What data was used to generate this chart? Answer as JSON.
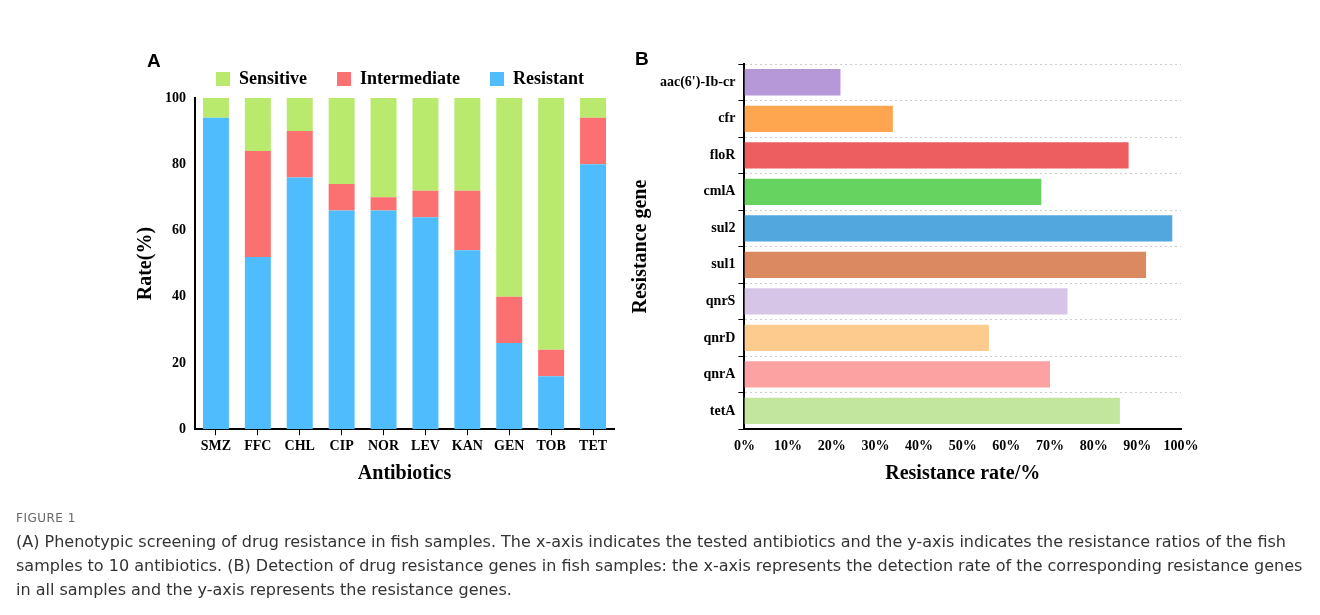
{
  "chart_data": [
    {
      "type": "bar",
      "stacked": true,
      "xlabel": "Antibiotics",
      "ylabel": "Rate(%)",
      "categories": [
        "SMZ",
        "FFC",
        "CHL",
        "CIP",
        "NOR",
        "LEV",
        "KAN",
        "GEN",
        "TOB",
        "TET"
      ],
      "series": [
        {
          "name": "Resistant",
          "color": "#4fbdfd",
          "values": [
            94,
            52,
            76,
            66,
            66,
            64,
            54,
            26,
            16,
            80
          ]
        },
        {
          "name": "Intermediate",
          "color": "#fb7070",
          "values": [
            0,
            32,
            14,
            8,
            4,
            8,
            18,
            14,
            8,
            14
          ]
        },
        {
          "name": "Sensitive",
          "color": "#b9ea6e",
          "values": [
            6,
            16,
            10,
            26,
            30,
            28,
            28,
            60,
            76,
            6
          ]
        }
      ],
      "ylim": [
        0,
        100
      ],
      "yticks": [
        0,
        20,
        40,
        60,
        80,
        100
      ],
      "grid": false,
      "legend": "top",
      "annotations": [
        "A",
        "FIGURE 1",
        "(A) Phenotypic screening of drug resistance in fish samples. The x-axis indicates the tested antibiotics and the y-axis indicates the resistance ratios of the fish samples to 10 antibiotics. (B) Detection of drug resistance genes in fish samples: the x-axis represents the detection rate of the corresponding resistance genes in all samples and the y-axis represents the resistance genes."
      ]
    },
    {
      "type": "bar",
      "orientation": "horizontal",
      "xlabel": "Resistance rate/%",
      "ylabel": "Resistance gene",
      "categories": [
        "aac(6')-Ib-cr",
        "cfr",
        "floR",
        "cmlA",
        "sul2",
        "sul1",
        "qnrS",
        "qnrD",
        "qnrA",
        "tetA"
      ],
      "values": [
        22,
        34,
        88,
        68,
        98,
        92,
        74,
        56,
        70,
        86
      ],
      "colors": [
        "#b698d8",
        "#fea64f",
        "#ec5e5f",
        "#66d361",
        "#52a7df",
        "#db8961",
        "#d6c5e7",
        "#fccb8d",
        "#fda2a2",
        "#c2e69e"
      ],
      "xlim": [
        0,
        100
      ],
      "xticks": [
        {
          "value": 0,
          "label": "0%"
        },
        {
          "value": 10,
          "label": "10%"
        },
        {
          "value": 20,
          "label": "20%"
        },
        {
          "value": 30,
          "label": "30%"
        },
        {
          "value": 40,
          "label": "40%"
        },
        {
          "value": 50,
          "label": "50%"
        },
        {
          "value": 60,
          "label": "60%"
        },
        {
          "value": 70,
          "label": "70%"
        },
        {
          "value": 80,
          "label": "80%"
        },
        {
          "value": 90,
          "label": "90%"
        },
        {
          "value": 100,
          "label": "100%"
        }
      ],
      "grid": "y",
      "legend": false,
      "annotations": [
        "B"
      ]
    }
  ]
}
